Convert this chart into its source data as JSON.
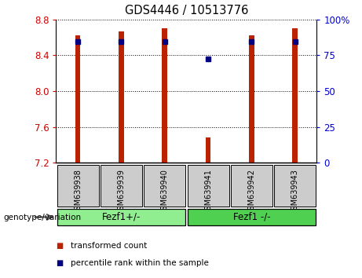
{
  "title": "GDS4446 / 10513776",
  "samples": [
    "GSM639938",
    "GSM639939",
    "GSM639940",
    "GSM639941",
    "GSM639942",
    "GSM639943"
  ],
  "red_bar_tops": [
    8.62,
    8.67,
    8.7,
    7.48,
    8.62,
    8.7
  ],
  "red_bar_bottom": 7.2,
  "blue_dot_y": [
    8.55,
    8.55,
    8.55,
    8.36,
    8.55,
    8.55
  ],
  "ylim": [
    7.2,
    8.8
  ],
  "yticks_left": [
    7.2,
    7.6,
    8.0,
    8.4,
    8.8
  ],
  "yticks_right": [
    0,
    25,
    50,
    75,
    100
  ],
  "groups": [
    {
      "label": "Fezf1+/-",
      "count": 3,
      "color": "#90ee90"
    },
    {
      "label": "Fezf1 -/-",
      "count": 3,
      "color": "#50d050"
    }
  ],
  "group_label_text": "genotype/variation",
  "legend_red": "transformed count",
  "legend_blue": "percentile rank within the sample",
  "bar_color": "#bb2200",
  "dot_color": "#000080",
  "tick_color_left": "#cc0000",
  "tick_color_right": "#0000cc",
  "bar_width": 0.12,
  "sample_box_color": "#cccccc",
  "title_fontsize": 10.5
}
